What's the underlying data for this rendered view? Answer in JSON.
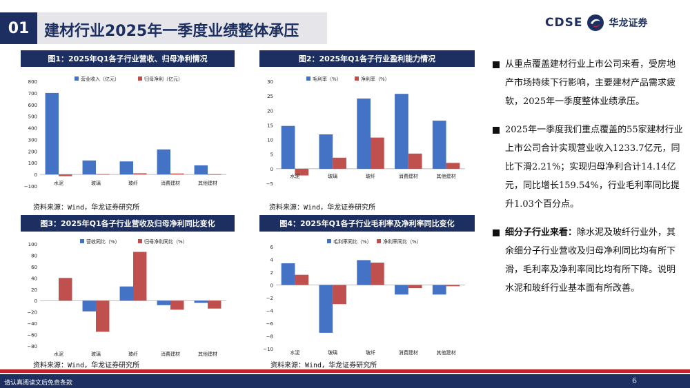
{
  "header": {
    "section_number": "01",
    "title": "建材行业2025年一季度业绩整体承压",
    "logo_text": "CDSE",
    "logo_cn": "华龙证券"
  },
  "colors": {
    "navy": "#1c2f60",
    "blue": "#4472c4",
    "red": "#c0504d",
    "footer_red": "#c0232c"
  },
  "charts_meta": {
    "source": "资料来源：Wind，华龙证券研究所"
  },
  "chart_data": [
    {
      "id": "fig1",
      "type": "bar",
      "title": "图1：2025年Q1各子行业营收、归母净利情况",
      "categories": [
        "水泥",
        "玻璃",
        "玻纤",
        "消费建材",
        "其他建材"
      ],
      "series": [
        {
          "name": "营业收入（亿元）",
          "color": "#4472c4",
          "values": [
            700,
            120,
            112,
            215,
            78
          ]
        },
        {
          "name": "归母净利（亿元）",
          "color": "#c0504d",
          "values": [
            -15,
            3,
            10,
            8,
            2
          ]
        }
      ],
      "ylim": [
        -100,
        800
      ],
      "yticks": [
        -100,
        0,
        100,
        200,
        300,
        400,
        500,
        600,
        700,
        800
      ],
      "ytick_labels": [
        "−100",
        "0",
        "100",
        "200",
        "300",
        "400",
        "500",
        "600",
        "700",
        "800"
      ],
      "legend": "top-left"
    },
    {
      "id": "fig2",
      "type": "bar",
      "title": "图2：2025年Q1各子行业盈利能力情况",
      "categories": [
        "水泥",
        "玻璃",
        "玻纤",
        "消费建材",
        "其他建材"
      ],
      "series": [
        {
          "name": "毛利率（%）",
          "color": "#4472c4",
          "values": [
            14.7,
            11.8,
            24.1,
            25.7,
            16.5
          ]
        },
        {
          "name": "净利率（%）",
          "color": "#c0504d",
          "values": [
            -2.3,
            3.8,
            10.7,
            5.2,
            2.0
          ]
        }
      ],
      "ylim": [
        -5,
        30
      ],
      "yticks": [
        -5,
        0,
        5,
        10,
        15,
        20,
        25,
        30
      ],
      "ytick_labels": [
        "−5",
        "0",
        "5",
        "10",
        "15",
        "20",
        "25",
        "30"
      ],
      "legend": "top-center"
    },
    {
      "id": "fig3",
      "type": "bar",
      "title": "图3：2025年Q1各子行业营收及归母净利同比变化",
      "categories": [
        "水泥",
        "玻璃",
        "玻纤",
        "消费建材",
        "其他建材"
      ],
      "series": [
        {
          "name": "营收同比（%）",
          "color": "#4472c4",
          "values": [
            0,
            -19,
            25,
            -8,
            -4
          ]
        },
        {
          "name": "归母净利同比（%）",
          "color": "#c0504d",
          "values": [
            40,
            -55,
            86,
            -16,
            -14
          ]
        }
      ],
      "ylim": [
        -80,
        100
      ],
      "yticks": [
        -80,
        -60,
        -40,
        -20,
        0,
        20,
        40,
        60,
        80,
        100
      ],
      "ytick_labels": [
        "−80",
        "−60",
        "−40",
        "−20",
        "0",
        "20",
        "40",
        "60",
        "80",
        "100"
      ],
      "legend": "top-center"
    },
    {
      "id": "fig4",
      "type": "bar",
      "title": "图4：2025年Q1各子行业毛利率及净利率同比变化",
      "categories": [
        "水泥",
        "玻璃",
        "玻纤",
        "消费建材",
        "其他建材"
      ],
      "series": [
        {
          "name": "毛利率同比（%）",
          "color": "#4472c4",
          "values": [
            3.4,
            -7.5,
            3.9,
            -1.5,
            -1.5
          ]
        },
        {
          "name": "净利率同比（%）",
          "color": "#c0504d",
          "values": [
            1.6,
            -3.0,
            3.5,
            -0.5,
            -0.2
          ]
        }
      ],
      "ylim": [
        -10,
        6
      ],
      "yticks": [
        -10,
        -8,
        -6,
        -4,
        -2,
        0,
        2,
        4,
        6
      ],
      "ytick_labels": [
        "−10",
        "−8",
        "−6",
        "−4",
        "−2",
        "0",
        "2",
        "4",
        "6"
      ],
      "legend": "top-center"
    }
  ],
  "bullets": [
    {
      "bold_prefix": "",
      "text": "从重点覆盖建材行业上市公司来看，受房地产市场持续下行影响，主要建材产品需求疲软，2025年一季度整体业绩承压。"
    },
    {
      "bold_prefix": "",
      "text": "2025年一季度我们重点覆盖的55家建材行业上市公司合计实现营业收入1233.7亿元，同比下滑2.21%；实现归母净利合计14.14亿元，同比增长159.54%，行业毛利率同比提升1.03个百分点。"
    },
    {
      "bold_prefix": "细分子行业来看：",
      "text": "除水泥及玻纤行业外，其余细分子行业营收及归母净利同比均有所下滑，毛利率及净利率同比均有所下降。说明水泥和玻纤行业基本面有所改善。"
    }
  ],
  "footer": {
    "disclaimer": "请认真阅读文后免责条款",
    "page": "6"
  }
}
